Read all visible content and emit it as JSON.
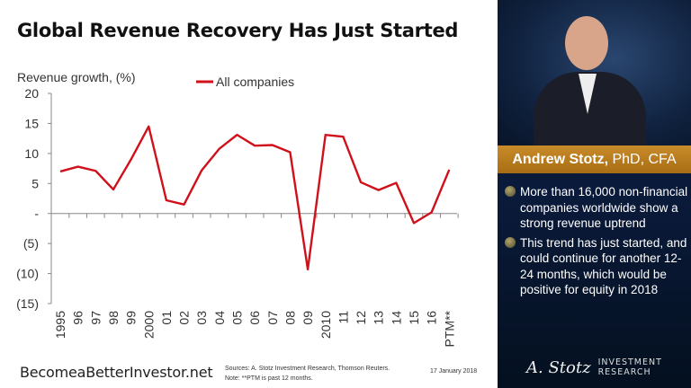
{
  "title": "Global Revenue Recovery Has Just Started",
  "chart_data": {
    "type": "line",
    "ylabel": "Revenue growth, (%)",
    "ylim": [
      -15,
      20
    ],
    "yticks": [
      20,
      15,
      10,
      5,
      0,
      -5,
      -10,
      -15
    ],
    "ytick_labels": [
      "20",
      "15",
      "10",
      "5",
      "-",
      "(5)",
      "(10)",
      "(15)"
    ],
    "categories": [
      "1995",
      "96",
      "97",
      "98",
      "99",
      "2000",
      "01",
      "02",
      "03",
      "04",
      "05",
      "06",
      "07",
      "08",
      "09",
      "2010",
      "11",
      "12",
      "13",
      "14",
      "15",
      "16",
      "PTM**"
    ],
    "series": [
      {
        "name": "All companies",
        "color": "#d0101a",
        "values": [
          7.0,
          7.8,
          7.1,
          4.0,
          9.0,
          14.5,
          2.2,
          1.5,
          7.2,
          10.8,
          13.1,
          11.3,
          11.4,
          10.2,
          -9.3,
          13.1,
          12.8,
          5.2,
          3.9,
          5.1,
          -1.6,
          0.2,
          7.3
        ]
      }
    ],
    "legend": "top",
    "grid": false
  },
  "footer": {
    "site": "BecomeaBetterInvestor.net",
    "sources": "Sources: A. Stotz Investment Research, Thomson Reuters.",
    "note": "Note: **PTM is past 12 months.",
    "date": "17 January 2018"
  },
  "panel": {
    "name": "Andrew Stotz,",
    "credentials": "PhD, CFA",
    "bullets": [
      "More than 16,000 non-financial companies worldwide show a strong revenue uptrend",
      "This trend has just started, and could continue for another 12-24 months, which would be positive for equity in 2018"
    ],
    "logo_signature": "A. Stotz",
    "logo_line1": "INVESTMENT",
    "logo_line2": "RESEARCH"
  }
}
